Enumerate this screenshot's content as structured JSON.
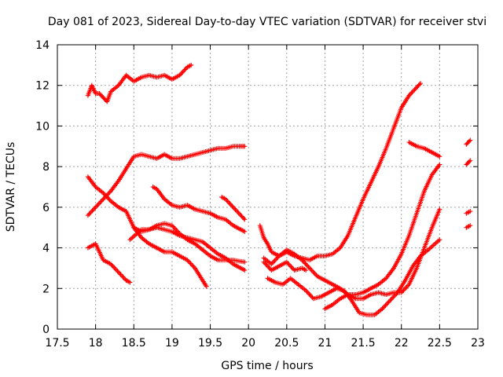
{
  "chart_data": {
    "type": "scatter",
    "title": "Day 081 of 2023, Sidereal Day-to-day VTEC variation (SDTVAR) for receiver stvi",
    "xlabel": "GPS time / hours",
    "ylabel": "SDTVAR / TECUs",
    "xlim": [
      17.5,
      23
    ],
    "ylim": [
      0,
      14
    ],
    "xticks": [
      "17.5",
      "18",
      "18.5",
      "19",
      "19.5",
      "20",
      "20.5",
      "21",
      "21.5",
      "22",
      "22.5",
      "23"
    ],
    "yticks": [
      "0",
      "2",
      "4",
      "6",
      "8",
      "10",
      "12",
      "14"
    ],
    "grid": true,
    "marker": "+",
    "color": "#ff0000",
    "series": [
      {
        "name": "s1",
        "points": [
          [
            17.9,
            11.5
          ],
          [
            17.95,
            12.0
          ],
          [
            18.0,
            11.6
          ],
          [
            18.05,
            11.6
          ],
          [
            18.1,
            11.4
          ],
          [
            18.15,
            11.2
          ],
          [
            18.2,
            11.7
          ],
          [
            18.3,
            12.0
          ],
          [
            18.4,
            12.5
          ],
          [
            18.5,
            12.2
          ],
          [
            18.6,
            12.4
          ],
          [
            18.7,
            12.5
          ],
          [
            18.8,
            12.4
          ],
          [
            18.9,
            12.5
          ],
          [
            19.0,
            12.3
          ],
          [
            19.1,
            12.5
          ],
          [
            19.2,
            12.9
          ],
          [
            19.25,
            13.0
          ]
        ]
      },
      {
        "name": "s2",
        "points": [
          [
            17.9,
            5.6
          ],
          [
            18.0,
            6.0
          ],
          [
            18.1,
            6.4
          ],
          [
            18.2,
            6.8
          ],
          [
            18.3,
            7.3
          ],
          [
            18.4,
            7.9
          ],
          [
            18.5,
            8.5
          ],
          [
            18.6,
            8.6
          ],
          [
            18.7,
            8.5
          ],
          [
            18.8,
            8.4
          ],
          [
            18.9,
            8.6
          ],
          [
            19.0,
            8.4
          ],
          [
            19.1,
            8.4
          ],
          [
            19.2,
            8.5
          ],
          [
            19.3,
            8.6
          ],
          [
            19.4,
            8.7
          ],
          [
            19.5,
            8.8
          ],
          [
            19.6,
            8.9
          ],
          [
            19.7,
            8.9
          ],
          [
            19.8,
            9.0
          ],
          [
            19.9,
            9.0
          ],
          [
            19.95,
            9.0
          ]
        ]
      },
      {
        "name": "s3",
        "points": [
          [
            17.9,
            7.5
          ],
          [
            18.0,
            7.0
          ],
          [
            18.1,
            6.7
          ],
          [
            18.2,
            6.3
          ],
          [
            18.3,
            6.0
          ],
          [
            18.4,
            5.8
          ],
          [
            18.5,
            5.0
          ],
          [
            18.6,
            4.5
          ],
          [
            18.7,
            4.2
          ],
          [
            18.8,
            4.0
          ],
          [
            18.9,
            3.8
          ],
          [
            19.0,
            3.8
          ],
          [
            19.1,
            3.6
          ],
          [
            19.2,
            3.4
          ],
          [
            19.3,
            3.0
          ],
          [
            19.4,
            2.4
          ],
          [
            19.45,
            2.1
          ]
        ]
      },
      {
        "name": "s4",
        "points": [
          [
            17.9,
            4.0
          ],
          [
            18.0,
            4.2
          ],
          [
            18.1,
            3.4
          ],
          [
            18.2,
            3.2
          ],
          [
            18.3,
            2.8
          ],
          [
            18.4,
            2.4
          ],
          [
            18.45,
            2.3
          ]
        ]
      },
      {
        "name": "s5",
        "points": [
          [
            18.45,
            4.4
          ],
          [
            18.6,
            4.9
          ],
          [
            18.7,
            4.9
          ],
          [
            18.8,
            5.1
          ],
          [
            18.9,
            5.2
          ],
          [
            19.0,
            5.1
          ],
          [
            19.1,
            4.7
          ],
          [
            19.2,
            4.4
          ],
          [
            19.3,
            4.2
          ],
          [
            19.4,
            3.9
          ],
          [
            19.5,
            3.6
          ],
          [
            19.6,
            3.4
          ],
          [
            19.7,
            3.4
          ],
          [
            19.8,
            3.4
          ],
          [
            19.95,
            3.3
          ]
        ]
      },
      {
        "name": "s6",
        "points": [
          [
            18.5,
            5.0
          ],
          [
            18.6,
            4.8
          ],
          [
            18.8,
            5.0
          ],
          [
            18.9,
            4.9
          ],
          [
            19.0,
            4.8
          ],
          [
            19.1,
            4.6
          ],
          [
            19.2,
            4.5
          ],
          [
            19.3,
            4.4
          ],
          [
            19.4,
            4.3
          ],
          [
            19.5,
            4.0
          ],
          [
            19.6,
            3.7
          ],
          [
            19.7,
            3.5
          ],
          [
            19.8,
            3.2
          ],
          [
            19.9,
            3.0
          ],
          [
            19.95,
            2.9
          ]
        ]
      },
      {
        "name": "s7",
        "points": [
          [
            18.75,
            7.0
          ],
          [
            18.8,
            6.9
          ],
          [
            18.9,
            6.4
          ],
          [
            19.0,
            6.1
          ],
          [
            19.1,
            6.0
          ],
          [
            19.2,
            6.1
          ],
          [
            19.3,
            5.9
          ],
          [
            19.4,
            5.8
          ],
          [
            19.5,
            5.7
          ],
          [
            19.6,
            5.5
          ],
          [
            19.7,
            5.4
          ],
          [
            19.8,
            5.1
          ],
          [
            19.9,
            4.9
          ],
          [
            19.95,
            4.8
          ]
        ]
      },
      {
        "name": "s8",
        "points": [
          [
            19.65,
            6.5
          ],
          [
            19.7,
            6.4
          ],
          [
            19.8,
            6.0
          ],
          [
            19.9,
            5.6
          ],
          [
            19.95,
            5.4
          ]
        ]
      },
      {
        "name": "s9",
        "points": [
          [
            20.15,
            5.1
          ],
          [
            20.2,
            4.5
          ],
          [
            20.25,
            4.2
          ],
          [
            20.3,
            3.8
          ],
          [
            20.4,
            3.6
          ],
          [
            20.45,
            3.7
          ],
          [
            20.5,
            3.8
          ],
          [
            20.6,
            3.6
          ],
          [
            20.7,
            3.5
          ],
          [
            20.8,
            3.4
          ],
          [
            20.9,
            3.6
          ],
          [
            21.0,
            3.6
          ],
          [
            21.1,
            3.7
          ],
          [
            21.2,
            4.0
          ],
          [
            21.3,
            4.6
          ],
          [
            21.4,
            5.5
          ],
          [
            21.5,
            6.4
          ],
          [
            21.6,
            7.2
          ],
          [
            21.7,
            8.0
          ],
          [
            21.8,
            8.9
          ],
          [
            21.9,
            9.9
          ],
          [
            22.0,
            10.9
          ],
          [
            22.1,
            11.5
          ],
          [
            22.2,
            11.9
          ],
          [
            22.25,
            12.1
          ]
        ]
      },
      {
        "name": "s10",
        "points": [
          [
            20.2,
            3.3
          ],
          [
            20.3,
            2.9
          ],
          [
            20.4,
            3.1
          ],
          [
            20.5,
            3.3
          ],
          [
            20.6,
            2.9
          ],
          [
            20.7,
            3.0
          ],
          [
            20.75,
            2.9
          ]
        ]
      },
      {
        "name": "s11",
        "points": [
          [
            20.2,
            3.5
          ],
          [
            20.3,
            3.2
          ],
          [
            20.4,
            3.6
          ],
          [
            20.5,
            3.9
          ],
          [
            20.6,
            3.7
          ],
          [
            20.7,
            3.4
          ],
          [
            20.8,
            3.0
          ],
          [
            20.9,
            2.6
          ],
          [
            21.0,
            2.4
          ],
          [
            21.1,
            2.2
          ],
          [
            21.2,
            2.0
          ],
          [
            21.3,
            1.7
          ],
          [
            21.4,
            1.5
          ],
          [
            21.5,
            1.5
          ],
          [
            21.6,
            1.7
          ],
          [
            21.7,
            1.8
          ],
          [
            21.8,
            1.7
          ],
          [
            21.9,
            1.8
          ],
          [
            22.0,
            1.8
          ],
          [
            22.1,
            2.2
          ],
          [
            22.2,
            3.0
          ],
          [
            22.3,
            4.0
          ],
          [
            22.4,
            5.0
          ],
          [
            22.5,
            5.9
          ]
        ]
      },
      {
        "name": "s12",
        "points": [
          [
            20.25,
            2.5
          ],
          [
            20.35,
            2.3
          ],
          [
            20.45,
            2.2
          ],
          [
            20.55,
            2.5
          ],
          [
            20.65,
            2.2
          ],
          [
            20.75,
            1.9
          ],
          [
            20.85,
            1.5
          ],
          [
            20.95,
            1.6
          ],
          [
            21.05,
            1.8
          ],
          [
            21.15,
            2.0
          ],
          [
            21.25,
            1.9
          ],
          [
            21.35,
            1.4
          ],
          [
            21.45,
            0.8
          ],
          [
            21.55,
            0.7
          ],
          [
            21.65,
            0.7
          ],
          [
            21.75,
            1.0
          ],
          [
            21.85,
            1.4
          ],
          [
            21.95,
            1.8
          ],
          [
            22.05,
            2.4
          ],
          [
            22.15,
            3.1
          ],
          [
            22.25,
            3.6
          ],
          [
            22.35,
            3.9
          ],
          [
            22.5,
            4.4
          ]
        ]
      },
      {
        "name": "s13",
        "points": [
          [
            21.0,
            1.0
          ],
          [
            21.1,
            1.2
          ],
          [
            21.2,
            1.5
          ],
          [
            21.3,
            1.7
          ],
          [
            21.4,
            1.7
          ],
          [
            21.5,
            1.8
          ],
          [
            21.6,
            2.0
          ],
          [
            21.7,
            2.2
          ],
          [
            21.8,
            2.5
          ],
          [
            21.9,
            3.0
          ],
          [
            22.0,
            3.7
          ],
          [
            22.1,
            4.6
          ],
          [
            22.2,
            5.7
          ],
          [
            22.3,
            6.8
          ],
          [
            22.4,
            7.6
          ],
          [
            22.5,
            8.1
          ]
        ]
      },
      {
        "name": "s14",
        "points": [
          [
            22.1,
            9.2
          ],
          [
            22.2,
            9.0
          ],
          [
            22.3,
            8.9
          ],
          [
            22.4,
            8.7
          ],
          [
            22.5,
            8.5
          ]
        ]
      },
      {
        "name": "s15",
        "points": [
          [
            22.85,
            9.1
          ],
          [
            22.9,
            9.3
          ]
        ]
      },
      {
        "name": "s16",
        "points": [
          [
            22.85,
            8.1
          ],
          [
            22.9,
            8.3
          ]
        ]
      },
      {
        "name": "s17",
        "points": [
          [
            22.85,
            5.7
          ],
          [
            22.9,
            5.8
          ]
        ]
      },
      {
        "name": "s18",
        "points": [
          [
            22.85,
            5.0
          ],
          [
            22.9,
            5.1
          ]
        ]
      }
    ]
  }
}
